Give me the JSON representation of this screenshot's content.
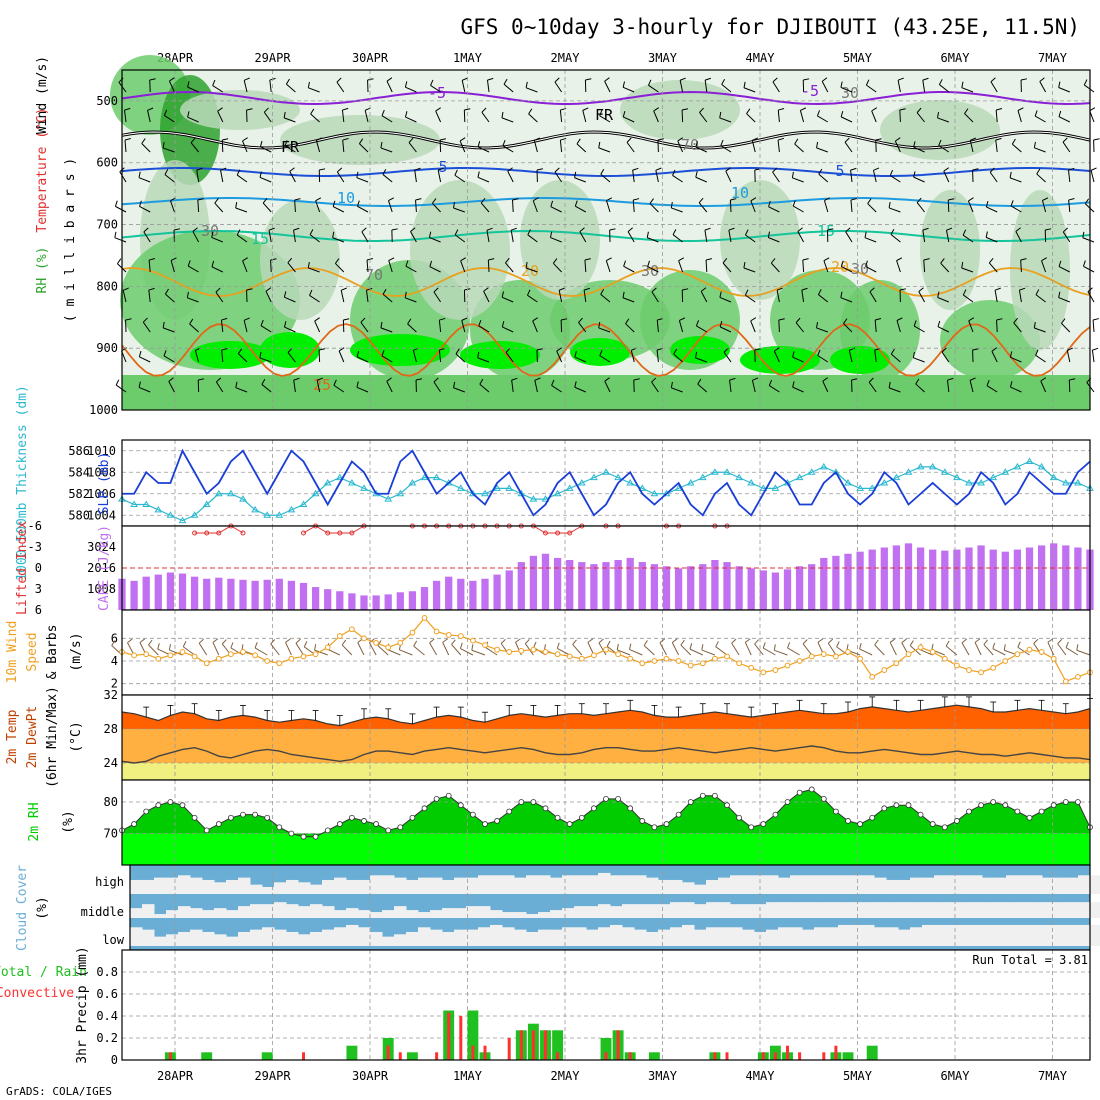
{
  "title": "GFS 0~10day 3-hourly for DJIBOUTI (43.25E, 11.5N)",
  "credit": "GrADS: COLA/IGES",
  "dates": [
    "28APR",
    "29APR",
    "30APR",
    "1MAY",
    "2MAY",
    "3MAY",
    "4MAY",
    "5MAY",
    "6MAY",
    "7MAY"
  ],
  "colors": {
    "rh_dark": "#2ea32e",
    "rh_mid": "#6ccc6c",
    "rh_light": "#b9d9b9",
    "rh_bright": "#00ee00",
    "freezing": "#000000",
    "t_minus5": "#8a1fd6",
    "t_5": "#1c4fd8",
    "t_10": "#1c9be0",
    "t_15": "#14c49a",
    "t_20": "#e8a020",
    "t_25": "#e06818",
    "slp": "#1a3ed6",
    "thickness": "#2ab8d0",
    "lifted_index": "#e03030",
    "cape": "#c070f0",
    "wind_speed": "#f0a020",
    "wind_barb": "#806040",
    "temp_fill": "#ff6000",
    "dewpt_fill": "#ffb040",
    "low_fill": "#f0f080",
    "rh2m": "#00cc00",
    "rh2m_bright": "#00ff00",
    "cloud": "#6aaed6",
    "cloud_clear": "#f0f0f0",
    "precip_total": "#20c020",
    "precip_conv": "#ff3030"
  },
  "panels": {
    "upper": {
      "ylabel_parts": [
        "RH (%)",
        "Temperature (°C)",
        "Wind (m/s)"
      ],
      "ylabel_unit": "( m i l l i b a r s )",
      "levels": [
        "500",
        "600",
        "700",
        "800",
        "900",
        "1000"
      ],
      "contour_labels": [
        "-5",
        "FR",
        "5",
        "10",
        "15",
        "20",
        "25",
        "30",
        "30",
        "70",
        "70",
        "30",
        "-5",
        "5",
        "10",
        "15",
        "20",
        "30",
        "FR"
      ]
    },
    "slp": {
      "ylabel_left": "1000-500mb Thickness (dm)",
      "ylabel_right": "SLP (mb)",
      "left_ticks": [
        "586",
        "584",
        "582",
        "580"
      ],
      "right_ticks": [
        "1010",
        "1008",
        "1006",
        "1004"
      ]
    },
    "cape": {
      "ylabel_left": "Lifted Index",
      "ylabel_right": "CAPE (J/kg)",
      "left_ticks": [
        "-6",
        "-3",
        "0",
        "3",
        "6"
      ],
      "right_ticks": [
        "3024",
        "2016",
        "1008"
      ]
    },
    "wind10m": {
      "ylabel_1": "10m Wind",
      "ylabel_2": "Speed",
      "ylabel_3": "& Barbs",
      "ylabel_unit": "(m/s)",
      "ticks": [
        "6",
        "4",
        "2"
      ]
    },
    "temp2m": {
      "ylabel_1": "2m Temp",
      "ylabel_2": "2m DewPt",
      "ylabel_3": "(6hr Min/Max)",
      "ylabel_unit": "(°C)",
      "ticks": [
        "32",
        "28",
        "24"
      ]
    },
    "rh2m": {
      "ylabel_1": "2m RH",
      "ylabel_unit": "(%)",
      "ticks": [
        "80",
        "70"
      ]
    },
    "cloud": {
      "ylabel_1": "Cloud Cover",
      "ylabel_unit": "(%)",
      "levels": [
        "high",
        "middle",
        "low"
      ]
    },
    "precip": {
      "ylabel_total": "Total / Rain",
      "ylabel_conv": "Convective",
      "ylabel_main": "3hr Precip (mm)",
      "ticks": [
        "0.8",
        "0.6",
        "0.4",
        "0.2",
        "0"
      ],
      "run_total": "Run Total = 3.81"
    }
  },
  "chart_data": {
    "type": "meteogram",
    "x_axis": "date, 3-hourly, 81 steps",
    "slp_mb": [
      1006,
      1006,
      1008,
      1007,
      1007,
      1010,
      1008,
      1006,
      1007,
      1009,
      1010,
      1008,
      1006,
      1008,
      1010,
      1009,
      1007,
      1005,
      1007,
      1009,
      1008,
      1006,
      1006,
      1009,
      1010,
      1008,
      1006,
      1007,
      1008,
      1006,
      1005,
      1007,
      1008,
      1006,
      1004,
      1005,
      1007,
      1008,
      1006,
      1004,
      1005,
      1007,
      1008,
      1006,
      1005,
      1006,
      1007,
      1005,
      1004,
      1006,
      1007,
      1005,
      1004,
      1006,
      1008,
      1007,
      1005,
      1005,
      1007,
      1008,
      1006,
      1005,
      1006,
      1008,
      1007,
      1005,
      1006,
      1007,
      1006,
      1005,
      1006,
      1008,
      1007,
      1005,
      1006,
      1008,
      1007,
      1006,
      1006,
      1008,
      1009
    ],
    "thickness_dm": [
      581.5,
      581,
      581,
      580.5,
      580,
      579.5,
      580,
      581,
      582,
      582,
      581.5,
      580.5,
      580,
      580,
      580.5,
      581,
      582,
      583,
      583.5,
      583,
      582.5,
      582,
      581.5,
      582,
      583,
      583.5,
      583.5,
      583,
      582.5,
      582,
      582,
      582.5,
      582.5,
      582,
      581.5,
      581.5,
      582,
      582.5,
      583,
      583.5,
      584,
      583.5,
      583,
      582.5,
      582,
      582,
      582.5,
      583,
      583.5,
      584,
      584,
      583.5,
      583,
      582.5,
      582.5,
      583,
      583.5,
      584,
      584.5,
      584,
      583,
      582.5,
      582.5,
      583,
      583.5,
      584,
      584.5,
      584.5,
      584,
      583.5,
      583,
      583,
      583.5,
      584,
      584.5,
      585,
      584.5,
      583.5,
      583,
      583,
      582.5
    ],
    "lifted_index": [
      null,
      null,
      null,
      null,
      null,
      null,
      -5,
      -5,
      -5,
      -6,
      -5,
      null,
      null,
      null,
      null,
      -5,
      -6,
      -5,
      -5,
      -5,
      -6,
      null,
      null,
      null,
      -6,
      -6,
      -6,
      -6,
      -6,
      -6,
      -6,
      -6,
      -6,
      -6,
      -6,
      -5,
      -5,
      -5,
      -6,
      null,
      -6,
      -6,
      null,
      null,
      null,
      -6,
      -6,
      null,
      null,
      -6,
      -6,
      null,
      null,
      null,
      null,
      null,
      null,
      null,
      null,
      null,
      null,
      null,
      null,
      null,
      null,
      null,
      null,
      null,
      null,
      null,
      null,
      null,
      null,
      null,
      null,
      null,
      null,
      null,
      null,
      null,
      null
    ],
    "cape_jkg": [
      1500,
      1400,
      1600,
      1700,
      1800,
      1750,
      1600,
      1500,
      1550,
      1500,
      1450,
      1400,
      1450,
      1500,
      1400,
      1300,
      1100,
      1000,
      900,
      800,
      700,
      700,
      750,
      850,
      900,
      1100,
      1400,
      1600,
      1500,
      1400,
      1500,
      1700,
      1900,
      2300,
      2600,
      2700,
      2500,
      2400,
      2300,
      2200,
      2300,
      2400,
      2500,
      2300,
      2200,
      2100,
      2000,
      2100,
      2200,
      2400,
      2300,
      2100,
      2000,
      1900,
      1800,
      1950,
      2100,
      2200,
      2500,
      2600,
      2700,
      2800,
      2900,
      3000,
      3100,
      3200,
      3000,
      2900,
      2850,
      2900,
      3000,
      3100,
      2900,
      2800,
      2900,
      3000,
      3100,
      3200,
      3100,
      3000,
      2900
    ],
    "wind10m_ms": [
      4.8,
      4.5,
      4.6,
      4.2,
      4.5,
      4.8,
      4.4,
      3.8,
      4.2,
      4.6,
      4.8,
      4.5,
      4.0,
      3.8,
      4.2,
      4.4,
      4.6,
      5.2,
      6.2,
      6.8,
      6.0,
      5.6,
      5.2,
      5.6,
      6.5,
      7.8,
      6.6,
      6.3,
      6.2,
      5.8,
      5.4,
      5.0,
      4.8,
      4.9,
      5.0,
      4.8,
      4.6,
      4.4,
      4.2,
      4.5,
      5.0,
      4.6,
      4.2,
      3.8,
      4.0,
      4.2,
      4.0,
      3.6,
      3.8,
      4.2,
      4.4,
      3.8,
      3.4,
      3.0,
      3.2,
      3.6,
      4.0,
      4.4,
      4.6,
      4.4,
      4.8,
      4.2,
      2.6,
      3.2,
      3.8,
      4.6,
      5.2,
      4.8,
      4.2,
      3.6,
      3.2,
      3.0,
      3.4,
      4.0,
      4.6,
      5.0,
      4.8,
      4.2,
      2.2,
      2.6,
      3.0
    ],
    "temp2m_c": [
      30.0,
      29.8,
      29.4,
      29.0,
      29.6,
      30.0,
      29.8,
      29.2,
      29.0,
      29.4,
      29.6,
      29.4,
      29.0,
      28.8,
      29.0,
      29.2,
      29.0,
      28.6,
      28.4,
      28.8,
      29.2,
      29.4,
      29.2,
      28.8,
      28.6,
      29.0,
      29.4,
      29.6,
      29.4,
      29.0,
      28.8,
      29.2,
      29.6,
      29.8,
      29.6,
      29.4,
      29.6,
      29.8,
      29.8,
      29.6,
      29.8,
      30.0,
      30.2,
      30.0,
      29.6,
      29.4,
      29.4,
      29.6,
      29.8,
      30.0,
      29.8,
      29.6,
      29.4,
      29.6,
      29.8,
      30.0,
      30.2,
      30.0,
      29.8,
      29.8,
      30.0,
      30.4,
      30.6,
      30.4,
      30.2,
      30.0,
      30.2,
      30.4,
      30.6,
      30.8,
      30.6,
      30.4,
      30.0,
      30.0,
      30.2,
      30.4,
      30.2,
      30.0,
      29.8,
      30.0,
      30.4
    ],
    "dewpt2m_c": [
      24.2,
      24.0,
      24.2,
      24.8,
      25.2,
      25.6,
      25.8,
      25.4,
      24.8,
      24.6,
      25.0,
      25.4,
      25.6,
      25.4,
      25.0,
      24.8,
      24.6,
      24.4,
      24.2,
      24.4,
      25.0,
      25.4,
      25.4,
      25.2,
      25.0,
      25.4,
      25.6,
      25.8,
      25.6,
      25.4,
      25.2,
      25.4,
      25.6,
      25.8,
      25.6,
      25.2,
      25.0,
      25.0,
      25.2,
      25.6,
      25.8,
      25.8,
      25.6,
      25.4,
      25.4,
      25.6,
      25.8,
      25.6,
      25.4,
      25.2,
      25.4,
      25.6,
      25.8,
      25.6,
      25.4,
      25.6,
      25.8,
      26.0,
      25.8,
      25.4,
      25.2,
      25.2,
      25.4,
      25.6,
      25.4,
      25.2,
      25.0,
      25.0,
      25.2,
      25.4,
      25.2,
      25.0,
      25.0,
      24.8,
      25.0,
      25.2,
      25.0,
      24.8,
      24.6,
      24.6,
      24.4
    ],
    "rh2m_pct": [
      71,
      73,
      77,
      79,
      80,
      79,
      75,
      71,
      73,
      75,
      76,
      76,
      75,
      72,
      70,
      69,
      69,
      71,
      73,
      75,
      74,
      73,
      71,
      72,
      75,
      78,
      81,
      82,
      79,
      76,
      73,
      74,
      77,
      80,
      80,
      78,
      75,
      73,
      75,
      78,
      81,
      81,
      78,
      74,
      72,
      73,
      76,
      80,
      82,
      82,
      79,
      75,
      72,
      73,
      76,
      80,
      83,
      84,
      81,
      77,
      74,
      73,
      75,
      78,
      79,
      79,
      76,
      73,
      72,
      74,
      77,
      79,
      80,
      79,
      77,
      75,
      77,
      79,
      80,
      80,
      72
    ],
    "cloud_high_pct": [
      40,
      40,
      30,
      30,
      20,
      30,
      40,
      50,
      40,
      30,
      60,
      70,
      50,
      40,
      50,
      60,
      40,
      30,
      40,
      40,
      20,
      20,
      30,
      40,
      30,
      30,
      40,
      30,
      30,
      20,
      20,
      20,
      30,
      20,
      20,
      30,
      20,
      20,
      20,
      10,
      20,
      20,
      20,
      30,
      40,
      40,
      50,
      60,
      40,
      30,
      20,
      20,
      20,
      20,
      30,
      20,
      20,
      20,
      20,
      20,
      20,
      20,
      30,
      40,
      40,
      30,
      30,
      20,
      20,
      20,
      20,
      30,
      30,
      20,
      20,
      20,
      30,
      30,
      30,
      20,
      20
    ],
    "cloud_mid_pct": [
      50,
      30,
      80,
      60,
      40,
      50,
      60,
      50,
      60,
      40,
      30,
      30,
      20,
      30,
      40,
      30,
      40,
      60,
      50,
      60,
      70,
      60,
      40,
      60,
      70,
      60,
      50,
      50,
      40,
      40,
      60,
      70,
      70,
      80,
      70,
      60,
      50,
      40,
      40,
      30,
      40,
      30,
      30,
      30,
      30,
      20,
      20,
      30,
      20,
      20,
      30,
      30,
      30,
      20,
      20,
      20,
      20,
      20,
      20,
      20,
      20,
      20,
      20,
      20,
      20,
      20,
      20,
      20,
      20,
      20,
      20,
      20,
      20,
      20,
      20,
      20,
      20,
      20,
      20,
      20,
      20
    ],
    "cloud_low_pct": [
      20,
      30,
      60,
      50,
      40,
      30,
      40,
      50,
      60,
      40,
      30,
      20,
      30,
      40,
      50,
      40,
      30,
      20,
      10,
      20,
      40,
      60,
      50,
      40,
      20,
      30,
      40,
      30,
      30,
      20,
      10,
      20,
      30,
      40,
      30,
      30,
      20,
      20,
      30,
      20,
      10,
      20,
      30,
      40,
      30,
      20,
      10,
      30,
      20,
      20,
      20,
      30,
      40,
      30,
      20,
      20,
      30,
      20,
      20,
      10,
      10,
      10,
      20,
      20,
      30,
      20,
      10,
      10,
      10,
      10,
      10,
      10,
      10,
      10,
      10,
      10,
      10,
      10,
      10,
      10,
      10
    ],
    "precip_total_mm": [
      0,
      0,
      0,
      0,
      0.07,
      0,
      0,
      0.07,
      0,
      0,
      0,
      0,
      0.07,
      0,
      0,
      0,
      0,
      0,
      0,
      0.13,
      0,
      0,
      0.2,
      0,
      0.07,
      0,
      0,
      0.45,
      0,
      0.45,
      0.07,
      0,
      0,
      0.27,
      0.33,
      0.27,
      0.27,
      0,
      0,
      0,
      0.2,
      0.27,
      0.07,
      0,
      0.07,
      0,
      0,
      0,
      0,
      0.07,
      0,
      0,
      0,
      0.07,
      0.13,
      0.07,
      0,
      0,
      0,
      0.07,
      0.07,
      0,
      0.13,
      0,
      0,
      0,
      0,
      0,
      0,
      0,
      0,
      0,
      0,
      0,
      0,
      0,
      0,
      0,
      0,
      0,
      0
    ],
    "precip_conv_mm": [
      0,
      0,
      0,
      0,
      0.07,
      0,
      0,
      0,
      0,
      0,
      0,
      0,
      0,
      0,
      0,
      0.07,
      0,
      0,
      0,
      0,
      0,
      0,
      0.13,
      0.07,
      0,
      0,
      0.07,
      0.43,
      0.4,
      0.13,
      0.13,
      0,
      0.2,
      0.27,
      0.27,
      0.27,
      0.07,
      0,
      0,
      0,
      0.07,
      0.27,
      0.07,
      0,
      0,
      0,
      0,
      0,
      0,
      0.07,
      0.07,
      0,
      0,
      0.07,
      0.07,
      0.13,
      0.07,
      0,
      0.07,
      0.13,
      0,
      0,
      0,
      0,
      0,
      0,
      0,
      0,
      0,
      0,
      0,
      0,
      0,
      0,
      0,
      0,
      0,
      0,
      0,
      0,
      0
    ],
    "axes": {
      "levels_mb": [
        500,
        600,
        700,
        800,
        900,
        1000
      ],
      "slp_range_mb": [
        1003,
        1011
      ],
      "thickness_range_dm": [
        579,
        587
      ],
      "lifted_index_range": [
        -6,
        6
      ],
      "cape_range_jkg": [
        0,
        4032
      ],
      "wind_range_ms": [
        1,
        8.5
      ],
      "temp_range_c": [
        22,
        32
      ],
      "rh_range_pct": [
        60,
        87
      ],
      "precip_range_mm": [
        0,
        1.0
      ]
    },
    "grid": true
  }
}
